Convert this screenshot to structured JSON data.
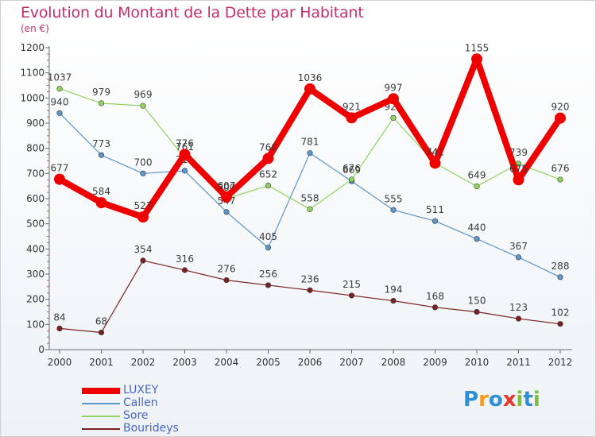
{
  "title": "Evolution du Montant de la Dette par Habitant",
  "subtitle": "(en €)",
  "chart_data": {
    "type": "line",
    "x": [
      "2000",
      "2001",
      "2002",
      "2003",
      "2004",
      "2005",
      "2006",
      "2007",
      "2008",
      "2009",
      "2010",
      "2011",
      "2012"
    ],
    "ylim": [
      0,
      1200
    ],
    "yticks": [
      0,
      100,
      200,
      300,
      400,
      500,
      600,
      700,
      800,
      900,
      1000,
      1100,
      1200
    ],
    "grid": false,
    "legend_position": "bottom-left",
    "series": [
      {
        "name": "Bourideys",
        "color": "#7a2020",
        "values": [
          84,
          68,
          354,
          316,
          276,
          256,
          236,
          215,
          194,
          168,
          150,
          123,
          102
        ]
      },
      {
        "name": "Callen",
        "color": "#5b96cd",
        "values": [
          940,
          773,
          700,
          711,
          547,
          405,
          781,
          669,
          555,
          511,
          440,
          367,
          288
        ]
      },
      {
        "name": "Sore",
        "color": "#8fd45c",
        "values": [
          1037,
          979,
          969,
          761,
          600,
          652,
          558,
          676,
          921,
          741,
          649,
          739,
          676
        ]
      },
      {
        "name": "LUXEY",
        "color": "#ee0000",
        "values": [
          677,
          584,
          527,
          776,
          607,
          760,
          1036,
          921,
          997,
          741,
          1155,
          675,
          920
        ]
      }
    ]
  },
  "legend": [
    {
      "name": "LUXEY",
      "color": "#ee0000"
    },
    {
      "name": "Callen",
      "color": "#5b96cd"
    },
    {
      "name": "Sore",
      "color": "#8fd45c"
    },
    {
      "name": "Bourideys",
      "color": "#7a2020"
    }
  ],
  "logo": {
    "text": "Proxiti",
    "letters": [
      {
        "ch": "P",
        "color": "#2f8fd6"
      },
      {
        "ch": "r",
        "color": "#f39a1e"
      },
      {
        "ch": "o",
        "color": "#2f8fd6"
      },
      {
        "ch": "x",
        "color": "#e23b2e"
      },
      {
        "ch": "i",
        "color": "#7cbf3a"
      },
      {
        "ch": "t",
        "color": "#2f8fd6"
      },
      {
        "ch": "i",
        "color": "#7cbf3a"
      }
    ]
  }
}
